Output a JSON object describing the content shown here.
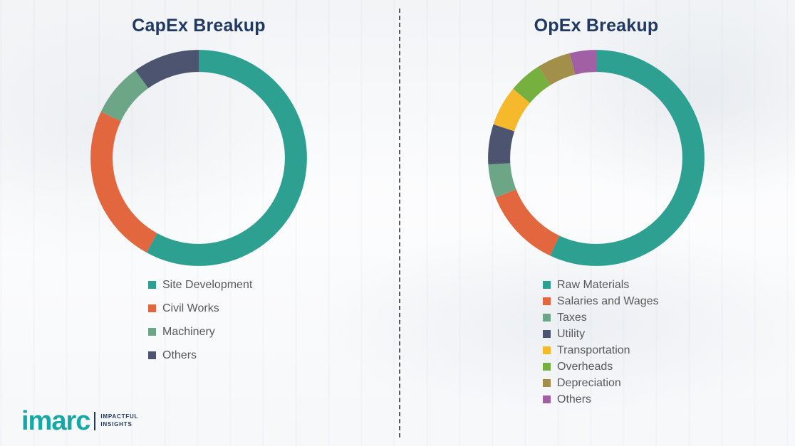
{
  "logo": {
    "brand": "imarc",
    "tagline_line1": "IMPACTFUL",
    "tagline_line2": "INSIGHTS"
  },
  "colors": {
    "title_navy": "#1F3864",
    "legend_text": "#595959",
    "divider_gray": "#595959",
    "brand_teal": "#17A8A4"
  },
  "chart_data": [
    {
      "type": "pie",
      "subtype": "donut",
      "title": "CapEx Breakup",
      "legend_position": "bottom-left",
      "segments": [
        {
          "label": "Site Development",
          "value": 58,
          "color": "#2EA092"
        },
        {
          "label": "Civil Works",
          "value": 24,
          "color": "#E2663E"
        },
        {
          "label": "Machinery",
          "value": 8,
          "color": "#6CA687"
        },
        {
          "label": "Others",
          "value": 10,
          "color": "#4D5470"
        }
      ]
    },
    {
      "type": "pie",
      "subtype": "donut",
      "title": "OpEx Breakup",
      "legend_position": "bottom-left",
      "segments": [
        {
          "label": "Raw Materials",
          "value": 57,
          "color": "#2EA092"
        },
        {
          "label": "Salaries and Wages",
          "value": 12,
          "color": "#E2663E"
        },
        {
          "label": "Taxes",
          "value": 5,
          "color": "#6CA687"
        },
        {
          "label": "Utility",
          "value": 6,
          "color": "#4D5470"
        },
        {
          "label": "Transportation",
          "value": 6,
          "color": "#F6B92B"
        },
        {
          "label": "Overheads",
          "value": 5,
          "color": "#76B13F"
        },
        {
          "label": "Depreciation",
          "value": 5,
          "color": "#A28F4A"
        },
        {
          "label": "Others",
          "value": 4,
          "color": "#A160A3"
        }
      ]
    }
  ]
}
